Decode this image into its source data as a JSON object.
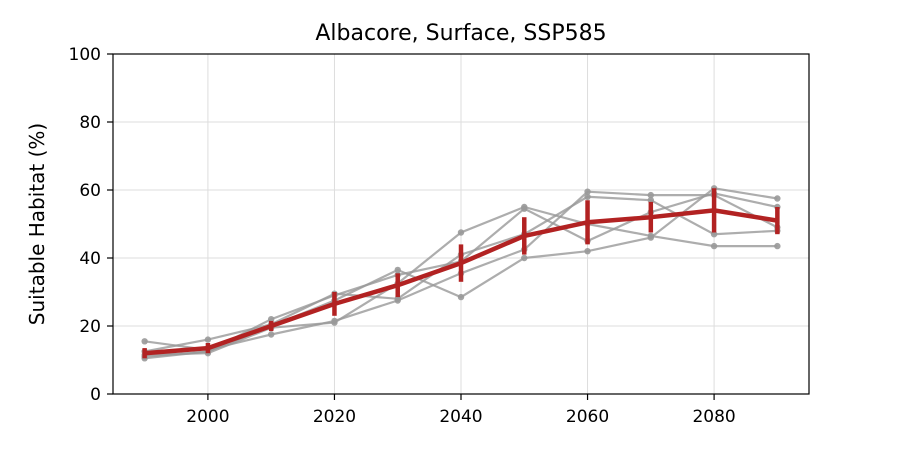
{
  "chart_data": {
    "type": "line",
    "title": "Albacore, Surface, SSP585",
    "xlabel": "",
    "ylabel": "Suitable Habitat (%)",
    "xlim": [
      1985,
      2095
    ],
    "ylim": [
      0,
      100
    ],
    "xticks": [
      2000,
      2020,
      2040,
      2060,
      2080
    ],
    "yticks": [
      0,
      20,
      40,
      60,
      80,
      100
    ],
    "grid": true,
    "x": [
      1990,
      2000,
      2010,
      2020,
      2030,
      2040,
      2050,
      2060,
      2070,
      2080,
      2090
    ],
    "series": [
      {
        "values": [
          15.5,
          13.0,
          17.5,
          21.5,
          27.5,
          35.5,
          42.5,
          59.5,
          58.5,
          58.5,
          49.0
        ]
      },
      {
        "values": [
          11.5,
          12.0,
          19.5,
          21.0,
          32.5,
          47.5,
          55.0,
          50.0,
          46.5,
          43.5,
          43.5
        ]
      },
      {
        "values": [
          10.5,
          12.5,
          20.0,
          27.5,
          36.5,
          28.5,
          40.0,
          42.0,
          46.0,
          60.5,
          57.5
        ]
      },
      {
        "values": [
          12.5,
          16.0,
          20.5,
          29.5,
          28.0,
          41.0,
          47.0,
          58.0,
          57.0,
          47.0,
          48.0
        ]
      },
      {
        "values": [
          11.0,
          12.5,
          22.0,
          29.0,
          35.0,
          39.0,
          54.5,
          45.0,
          53.5,
          59.0,
          55.0
        ]
      }
    ],
    "mean": {
      "values": [
        12.0,
        13.5,
        20.0,
        26.5,
        32.0,
        38.5,
        46.5,
        50.5,
        52.0,
        54.0,
        51.0
      ],
      "err": [
        1.5,
        1.5,
        1.5,
        3.5,
        3.5,
        5.5,
        5.5,
        6.5,
        4.5,
        6.5,
        4.0
      ]
    },
    "colors": {
      "ensemble": "#999999",
      "mean": "#b22222",
      "grid": "#dddddd"
    }
  }
}
